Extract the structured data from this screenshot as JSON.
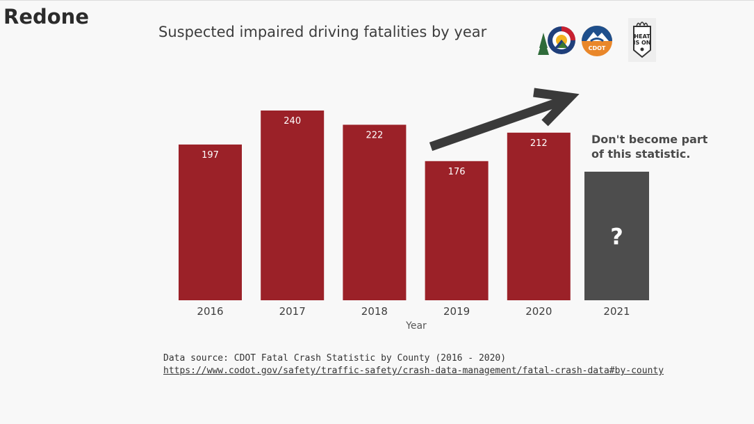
{
  "heading": "Redone",
  "callout": {
    "line1": "Don't become part",
    "line2": "of this statistic."
  },
  "source": {
    "text": "Data source: CDOT Fatal Crash Statistic by County (2016 - 2020)",
    "link": "https://www.codot.gov/safety/traffic-safety/crash-data-management/fatal-crash-data#by-county"
  },
  "logos": {
    "left": "colorado-logo",
    "middle": "cdot-logo",
    "middle_text": "CDOT",
    "right": "heat-is-on-logo",
    "right_text": [
      "HEAT",
      "IS ON"
    ]
  },
  "colors": {
    "bar": "#9b2128",
    "unknown_bar": "#4d4d4d",
    "arrow": "#3a3a3a",
    "background": "#f8f8f8"
  },
  "chart_data": {
    "type": "bar",
    "title": "Suspected impaired driving fatalities by year",
    "xlabel": "Year",
    "ylabel": "",
    "categories": [
      "2016",
      "2017",
      "2018",
      "2019",
      "2020",
      "2021"
    ],
    "values": [
      197,
      240,
      222,
      176,
      212,
      null
    ],
    "unknown_label": "?",
    "ylim": [
      0,
      240
    ],
    "grid": false,
    "annotation": "trend arrow from 2019 rising toward 2021"
  }
}
